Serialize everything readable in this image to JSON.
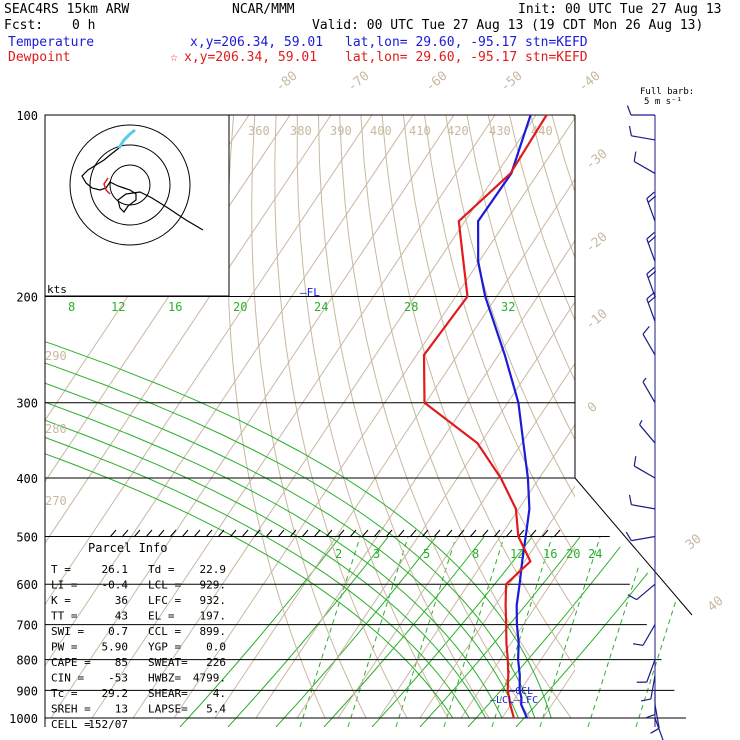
{
  "header": {
    "model": "SEAC4RS 15km ARW",
    "org": "NCAR/MMM",
    "init": "Init: 00 UTC Tue 27 Aug 13",
    "fcst_label": "Fcst:",
    "fcst_value": "0 h",
    "valid": "Valid: 00 UTC Tue 27 Aug 13 (19 CDT Mon 26 Aug 13)",
    "temperature_label": "Temperature",
    "dewpoint_label": "Dewpoint",
    "temp_xy": "x,y=206.34, 59.01",
    "dew_xy": "x,y=206.34, 59.01",
    "dew_marker": "☆",
    "temp_latlon": "lat,lon= 29.60, -95.17",
    "dew_latlon": "lat,lon= 29.60, -95.17",
    "temp_stn": "stn=KEFD",
    "dew_stn": "stn=KEFD"
  },
  "barb_legend": {
    "line1": "Full barb:",
    "line2": "5 m s⁻¹"
  },
  "hodograph": {
    "units": "kts"
  },
  "annotations": {
    "fl": "FL",
    "ccl": "CCL",
    "lcl": "LCL",
    "lfc": "LFC"
  },
  "parcel_info": {
    "title": "Parcel Info",
    "rows": [
      [
        "T  =",
        "26.1",
        "Td =",
        "22.9"
      ],
      [
        "LI =",
        "-0.4",
        "LCL =",
        "929."
      ],
      [
        "K  =",
        "36",
        "LFC =",
        "932."
      ],
      [
        "TT =",
        "43",
        "EL  =",
        "197."
      ],
      [
        "SWI =",
        "0.7",
        "CCL =",
        "899."
      ],
      [
        "PW =",
        "5.90",
        "YGP =",
        "0.0"
      ],
      [
        "CAPE =",
        "85",
        "SWEAT=",
        "226"
      ],
      [
        "CIN =",
        "-53",
        "HWBZ=",
        "4799."
      ],
      [
        "Tc =",
        "29.2",
        "SHEAR=",
        "4."
      ],
      [
        "SREH =",
        "13",
        "LAPSE=",
        "5.4"
      ],
      [
        "CELL =",
        "152/07",
        "",
        ""
      ]
    ]
  },
  "colors": {
    "temperature": "#1b1bd6",
    "dewpoint": "#e01b1b",
    "isotherm": "#c8b8a0",
    "mixing_ratio": "#2bb02b",
    "barbs": "#1b1b8a",
    "hodo_trace": "#000000",
    "hodo_low": "#e01b1b",
    "hodo_high": "#5ec8e8"
  },
  "chart_data": {
    "type": "line",
    "title": "",
    "xlabel": "",
    "ylabel": "",
    "pressure_ticks": [
      "100",
      "200",
      "300",
      "400",
      "500",
      "600",
      "700",
      "800",
      "900",
      "1000"
    ],
    "isotherm_labels": [
      "-80",
      "-70",
      "-60",
      "-50",
      "-40",
      "-30",
      "-20",
      "-10",
      "0",
      "30",
      "40"
    ],
    "theta_labels": [
      "360",
      "380",
      "390",
      "400",
      "410",
      "420",
      "430",
      "440",
      "290",
      "280",
      "270"
    ],
    "mixing_ratio_upper": [
      "8",
      "12",
      "16",
      "20",
      "24",
      "28",
      "32"
    ],
    "mixing_ratio_lower": [
      "2",
      "3",
      "5",
      "8",
      "12",
      "16",
      "20",
      "24"
    ],
    "series": [
      {
        "name": "Temperature",
        "pressure": [
          1000,
          950,
          925,
          900,
          850,
          800,
          750,
          700,
          650,
          600,
          550,
          500,
          450,
          400,
          350,
          300,
          250,
          200,
          175,
          150,
          125,
          100
        ],
        "values": [
          26.1,
          22.5,
          21.4,
          19.8,
          17.4,
          14.4,
          11.8,
          8.4,
          5.2,
          2.5,
          -0.6,
          -3.8,
          -7.4,
          -12.8,
          -19.6,
          -27.4,
          -38.5,
          -52.8,
          -60.2,
          -66.8,
          -66.5,
          -71.3
        ]
      },
      {
        "name": "Dewpoint",
        "pressure": [
          1000,
          950,
          925,
          900,
          850,
          800,
          750,
          700,
          650,
          600,
          550,
          500,
          450,
          400,
          350,
          300,
          250,
          200,
          175,
          150,
          125,
          100
        ],
        "values": [
          22.9,
          19.8,
          18.4,
          16.9,
          14.6,
          11.9,
          8.8,
          5.8,
          2.5,
          -0.8,
          1.4,
          -5.6,
          -10.7,
          -19.4,
          -30.8,
          -50.3,
          -58.2,
          -57.1,
          -63.8,
          -71.5,
          -66.7,
          -67.4
        ]
      }
    ],
    "wind_barbs": [
      {
        "pressure": 1000,
        "speed_kt": 6,
        "dir": 160
      },
      {
        "pressure": 950,
        "speed_kt": 10,
        "dir": 170
      },
      {
        "pressure": 900,
        "speed_kt": 10,
        "dir": 180
      },
      {
        "pressure": 850,
        "speed_kt": 10,
        "dir": 190
      },
      {
        "pressure": 800,
        "speed_kt": 10,
        "dir": 200
      },
      {
        "pressure": 700,
        "speed_kt": 10,
        "dir": 210
      },
      {
        "pressure": 600,
        "speed_kt": 10,
        "dir": 230
      },
      {
        "pressure": 500,
        "speed_kt": 10,
        "dir": 260
      },
      {
        "pressure": 450,
        "speed_kt": 10,
        "dir": 280
      },
      {
        "pressure": 400,
        "speed_kt": 10,
        "dir": 300
      },
      {
        "pressure": 350,
        "speed_kt": 5,
        "dir": 320
      },
      {
        "pressure": 300,
        "speed_kt": 5,
        "dir": 330
      },
      {
        "pressure": 250,
        "speed_kt": 10,
        "dir": 330
      },
      {
        "pressure": 220,
        "speed_kt": 20,
        "dir": 340
      },
      {
        "pressure": 200,
        "speed_kt": 20,
        "dir": 340
      },
      {
        "pressure": 175,
        "speed_kt": 20,
        "dir": 340
      },
      {
        "pressure": 150,
        "speed_kt": 20,
        "dir": 340
      },
      {
        "pressure": 125,
        "speed_kt": 10,
        "dir": 300
      },
      {
        "pressure": 110,
        "speed_kt": 10,
        "dir": 280
      },
      {
        "pressure": 100,
        "speed_kt": 10,
        "dir": 270
      }
    ]
  }
}
